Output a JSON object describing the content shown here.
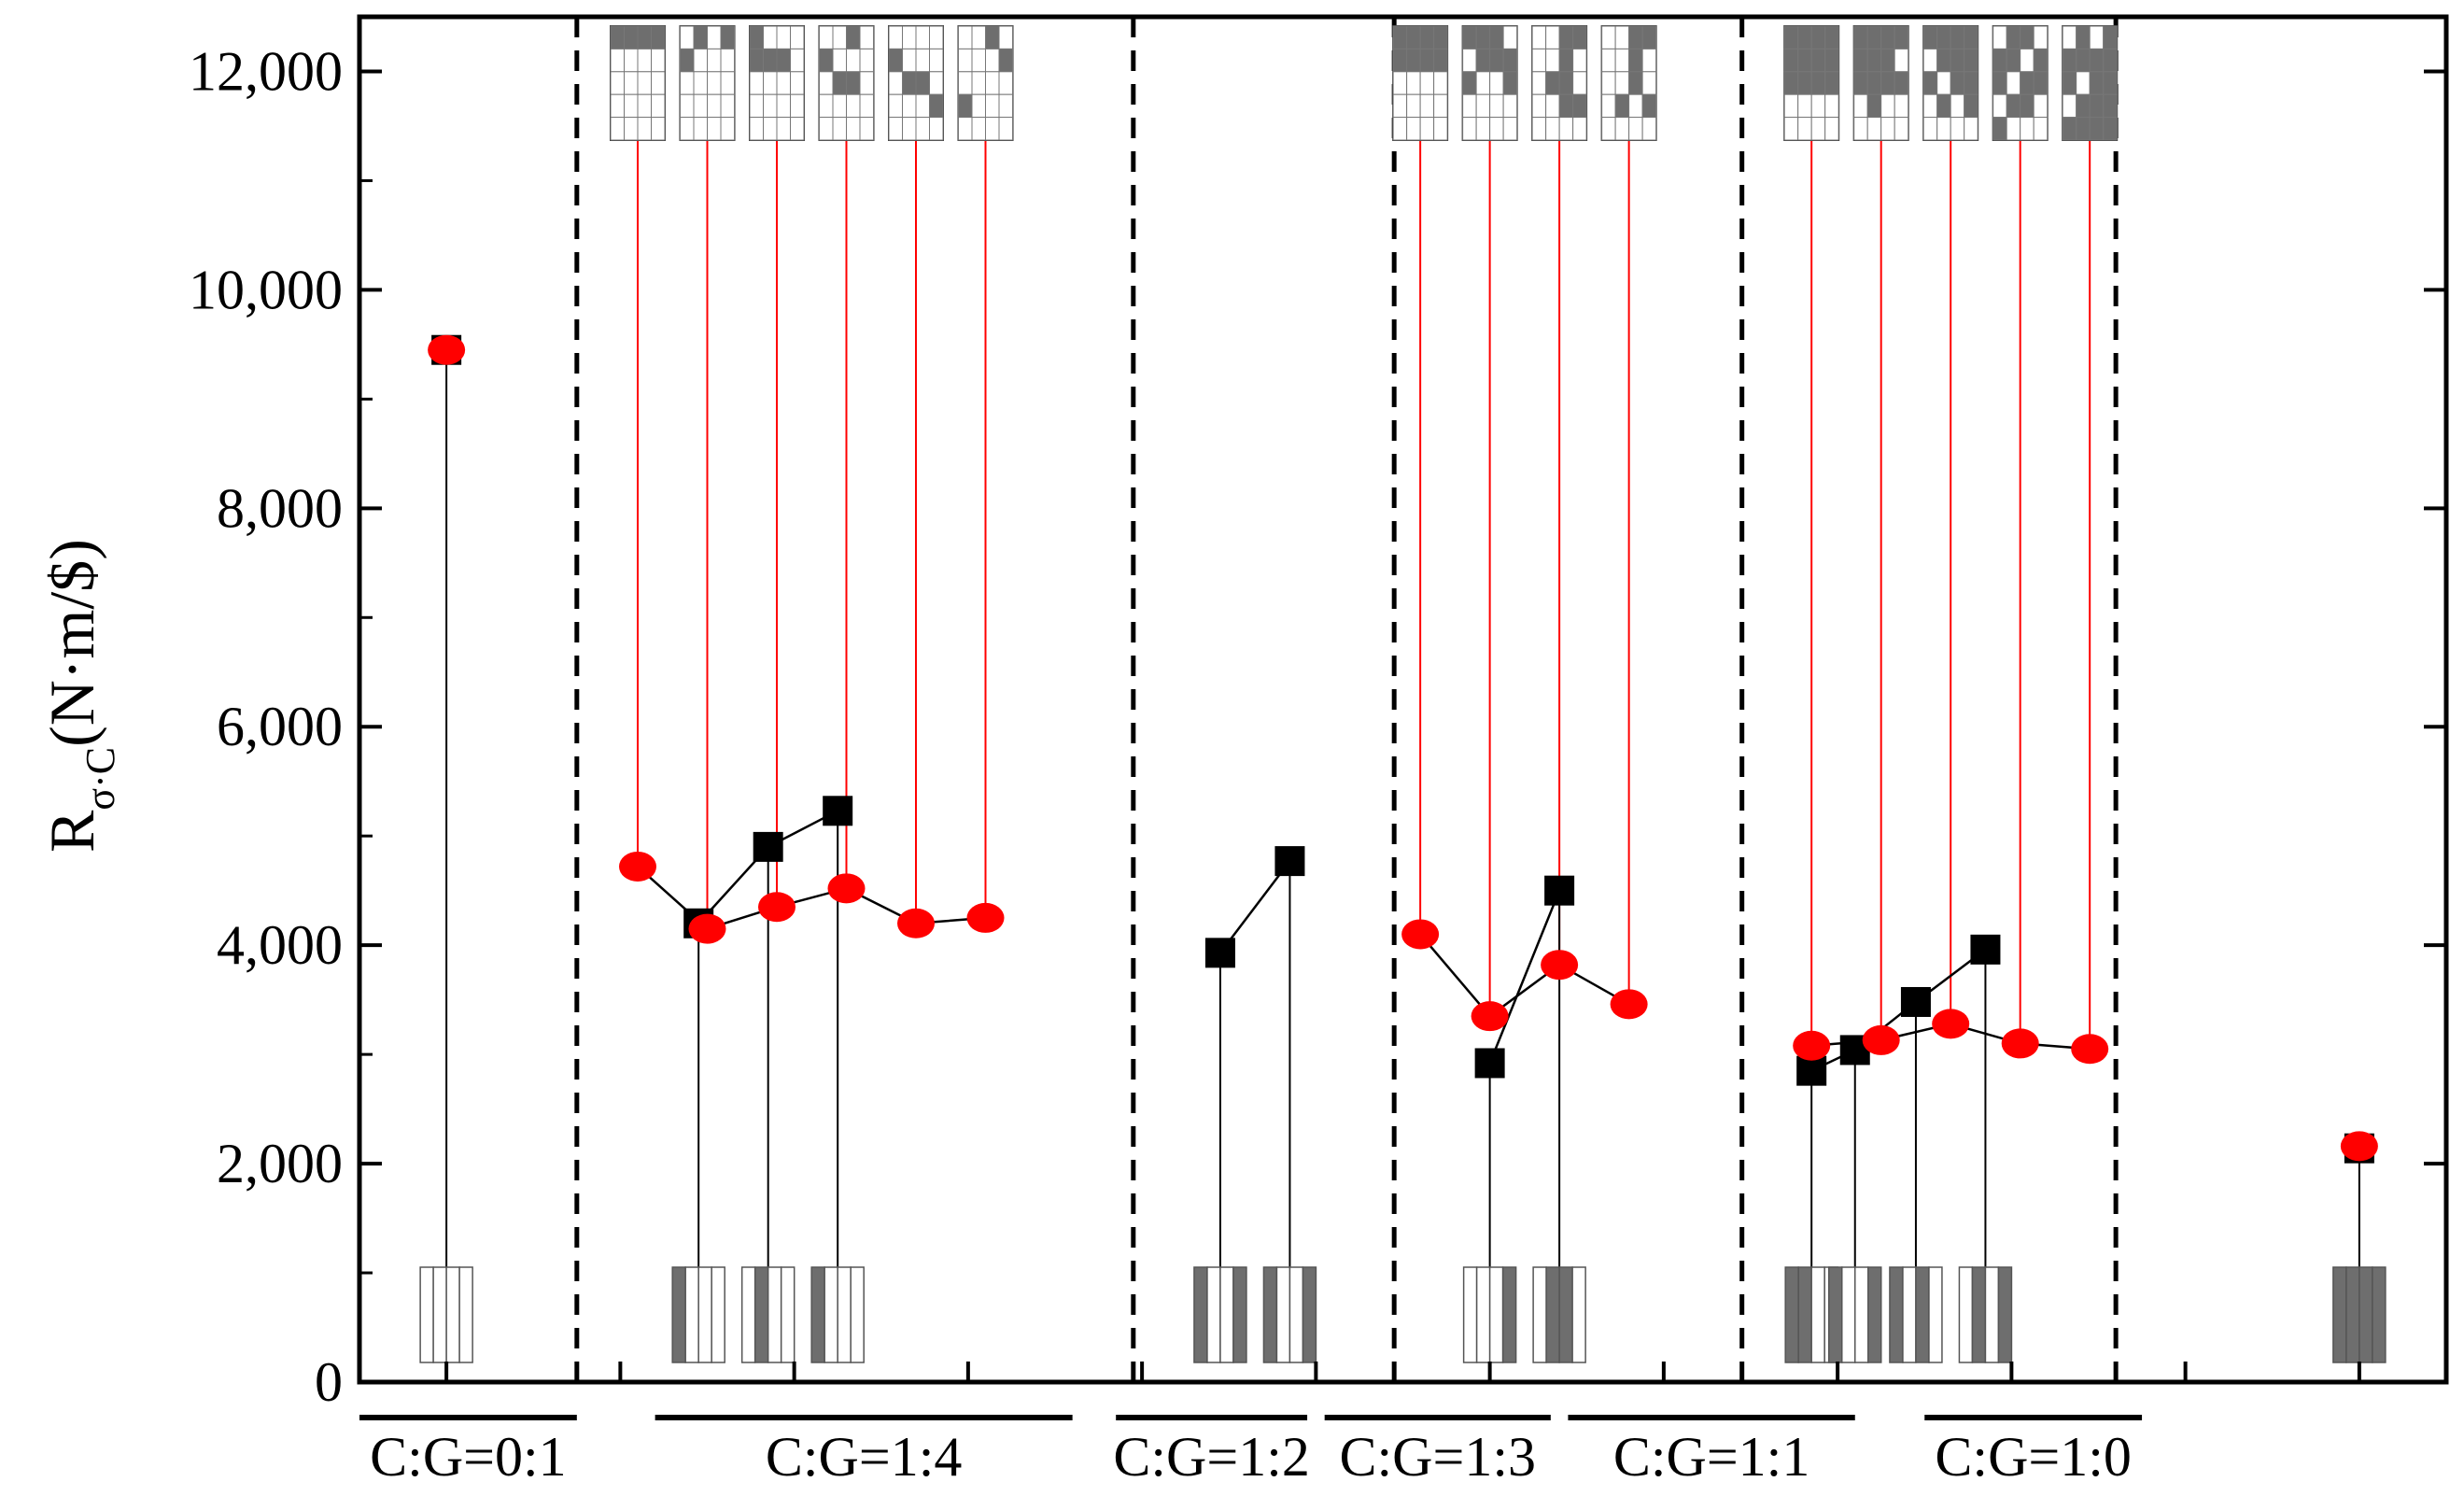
{
  "chart_data": {
    "type": "scatter",
    "title": "",
    "ylabel": "R",
    "ylabel_subscript": "σ·C",
    "ylabel_units": "(N·m/$)",
    "ylim": [
      0,
      12500
    ],
    "yticks": [
      0,
      2000,
      4000,
      6000,
      8000,
      10000,
      12000
    ],
    "ytick_labels": [
      "0",
      "2,000",
      "4,000",
      "6,000",
      "8,000",
      "10,000",
      "12,000"
    ],
    "xlim": [
      0.5,
      12.5
    ],
    "groups": [
      {
        "label": "C:G=0:1",
        "range": [
          0.5,
          1.75
        ],
        "center": 1
      },
      {
        "label": "C:G=1:4",
        "range": [
          2.2,
          4.6
        ],
        "center": 2.95
      },
      {
        "label": "C:G=1:2",
        "range": [
          4.85,
          5.95
        ],
        "center": 4.95
      },
      {
        "label": "C:G=1:3",
        "range": [
          6.05,
          7.35
        ],
        "center": 6.95
      },
      {
        "label": "C:G=1:1",
        "range": [
          7.45,
          9.1
        ],
        "center": 8.95
      },
      {
        "label": "C:G=1:0",
        "range": [
          9.5,
          10.75
        ],
        "center": 10.95
      }
    ],
    "group_separators": [
      1.75,
      4.95,
      6.45,
      8.45,
      10.6
    ],
    "series": [
      {
        "name": "black squares",
        "marker": "square",
        "color": "#000000",
        "segments": [
          [
            [
              1,
              9450
            ]
          ],
          [
            [
              2.45,
              4200
            ],
            [
              2.85,
              4900
            ],
            [
              3.25,
              5230
            ]
          ],
          [
            [
              5.45,
              3930
            ],
            [
              5.85,
              4770
            ]
          ],
          [
            [
              7.0,
              2920
            ],
            [
              7.4,
              4500
            ]
          ],
          [
            [
              8.85,
              2850
            ],
            [
              9.1,
              3040
            ],
            [
              9.45,
              3480
            ],
            [
              9.85,
              3960
            ]
          ],
          [
            [
              12.0,
              2140
            ]
          ]
        ]
      },
      {
        "name": "red circles",
        "marker": "circle",
        "color": "#ff0000",
        "segments": [
          [
            [
              1,
              9450
            ]
          ],
          [
            [
              2.1,
              4720
            ],
            [
              2.5,
              4150
            ],
            [
              2.9,
              4350
            ],
            [
              3.3,
              4520
            ],
            [
              3.7,
              4200
            ],
            [
              4.1,
              4250
            ]
          ],
          [
            [
              6.6,
              4100
            ],
            [
              7.0,
              3350
            ],
            [
              7.4,
              3820
            ],
            [
              7.8,
              3460
            ]
          ],
          [
            [
              8.85,
              3080
            ],
            [
              9.25,
              3130
            ],
            [
              9.65,
              3280
            ],
            [
              10.05,
              3100
            ],
            [
              10.45,
              3050
            ]
          ],
          [
            [
              12.0,
              2160
            ]
          ]
        ]
      }
    ],
    "leader_lines_to_top_diagrams": [
      {
        "x": 2.1,
        "y": 4720
      },
      {
        "x": 2.5,
        "y": 4150
      },
      {
        "x": 2.9,
        "y": 4350
      },
      {
        "x": 3.3,
        "y": 4520
      },
      {
        "x": 3.7,
        "y": 4200
      },
      {
        "x": 4.1,
        "y": 4250
      },
      {
        "x": 6.6,
        "y": 4100
      },
      {
        "x": 7.0,
        "y": 3350
      },
      {
        "x": 7.4,
        "y": 3820
      },
      {
        "x": 7.8,
        "y": 3460
      },
      {
        "x": 8.85,
        "y": 3080
      },
      {
        "x": 9.25,
        "y": 3130
      },
      {
        "x": 9.65,
        "y": 3280
      },
      {
        "x": 10.05,
        "y": 3100
      },
      {
        "x": 10.45,
        "y": 3050
      }
    ],
    "leader_lines_to_bottom_diagrams": [
      {
        "x": 1,
        "y": 9450
      },
      {
        "x": 2.45,
        "y": 4200
      },
      {
        "x": 2.85,
        "y": 4900
      },
      {
        "x": 3.25,
        "y": 5230
      },
      {
        "x": 5.45,
        "y": 3930
      },
      {
        "x": 5.85,
        "y": 4770
      },
      {
        "x": 7.0,
        "y": 2920
      },
      {
        "x": 7.4,
        "y": 4500
      },
      {
        "x": 8.85,
        "y": 2850
      },
      {
        "x": 9.1,
        "y": 3040
      },
      {
        "x": 9.45,
        "y": 3480
      },
      {
        "x": 9.85,
        "y": 3960
      },
      {
        "x": 12.0,
        "y": 2140
      }
    ],
    "top_diagrams": [
      {
        "x": 2.1,
        "cells": [
          0,
          1,
          2,
          3
        ]
      },
      {
        "x": 2.5,
        "cells": [
          1,
          3,
          4
        ]
      },
      {
        "x": 2.9,
        "cells": [
          0,
          4,
          5,
          6
        ]
      },
      {
        "x": 3.3,
        "cells": [
          2,
          4,
          9,
          10
        ]
      },
      {
        "x": 3.7,
        "cells": [
          4,
          9,
          10,
          15
        ]
      },
      {
        "x": 4.1,
        "cells": [
          2,
          7,
          12
        ]
      },
      {
        "x": 6.6,
        "cells": [
          0,
          1,
          2,
          3,
          4,
          5,
          6,
          7
        ]
      },
      {
        "x": 7.0,
        "cells": [
          0,
          1,
          2,
          5,
          6,
          7,
          8,
          11
        ]
      },
      {
        "x": 7.4,
        "cells": [
          2,
          3,
          6,
          9,
          10,
          14,
          15
        ]
      },
      {
        "x": 7.8,
        "cells": [
          2,
          3,
          6,
          10,
          13,
          15
        ]
      },
      {
        "x": 8.85,
        "cells": [
          0,
          1,
          2,
          3,
          4,
          5,
          6,
          7,
          8,
          9,
          10,
          11
        ]
      },
      {
        "x": 9.25,
        "cells": [
          0,
          1,
          2,
          3,
          4,
          5,
          6,
          8,
          9,
          10,
          11,
          13
        ]
      },
      {
        "x": 9.65,
        "cells": [
          0,
          1,
          2,
          3,
          5,
          6,
          7,
          8,
          10,
          11,
          13,
          15
        ]
      },
      {
        "x": 10.05,
        "cells": [
          1,
          2,
          4,
          5,
          7,
          8,
          10,
          11,
          13,
          14,
          16
        ]
      },
      {
        "x": 10.45,
        "cells": [
          1,
          3,
          4,
          5,
          6,
          7,
          8,
          10,
          11,
          13,
          14,
          15,
          16,
          17,
          18,
          19
        ]
      }
    ],
    "bottom_diagrams": [
      {
        "x": 1,
        "filled": []
      },
      {
        "x": 2.45,
        "filled": [
          0
        ]
      },
      {
        "x": 2.85,
        "filled": [
          1
        ]
      },
      {
        "x": 3.25,
        "filled": [
          0
        ]
      },
      {
        "x": 5.45,
        "filled": [
          0,
          3
        ]
      },
      {
        "x": 5.85,
        "filled": [
          0,
          3
        ]
      },
      {
        "x": 7.0,
        "filled": [
          3
        ]
      },
      {
        "x": 7.4,
        "filled": [
          1,
          2
        ]
      },
      {
        "x": 8.85,
        "filled": [
          0,
          1
        ]
      },
      {
        "x": 9.1,
        "filled": [
          0,
          3
        ]
      },
      {
        "x": 9.45,
        "filled": [
          0,
          2
        ]
      },
      {
        "x": 9.85,
        "filled": [
          1,
          3
        ]
      },
      {
        "x": 12.0,
        "filled": [
          0,
          1,
          2,
          3
        ]
      }
    ]
  }
}
